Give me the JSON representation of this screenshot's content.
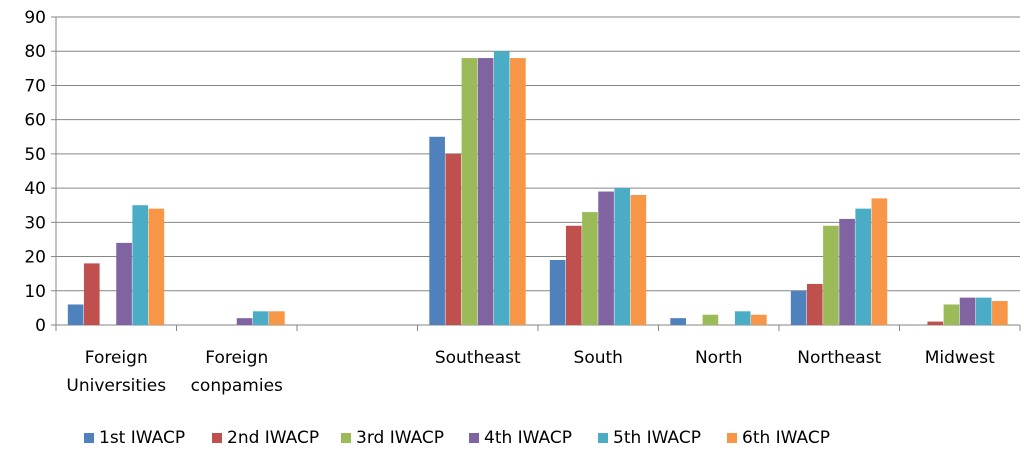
{
  "chart_data": {
    "type": "bar",
    "categories": [
      [
        "Foreign",
        "Universities"
      ],
      [
        "Foreign",
        "conpamies"
      ],
      [
        ""
      ],
      [
        "Southeast"
      ],
      [
        "South"
      ],
      [
        "North"
      ],
      [
        "Northeast"
      ],
      [
        "Midwest"
      ]
    ],
    "series": [
      {
        "name": "1st IWACP",
        "color": "#4f81bd",
        "values": [
          6,
          0,
          0,
          55,
          19,
          2,
          10,
          0
        ]
      },
      {
        "name": "2nd IWACP",
        "color": "#c0504d",
        "values": [
          18,
          0,
          0,
          50,
          29,
          0,
          12,
          1
        ]
      },
      {
        "name": "3rd IWACP",
        "color": "#9bbb59",
        "values": [
          0,
          0,
          0,
          78,
          33,
          3,
          29,
          6
        ]
      },
      {
        "name": "4th IWACP",
        "color": "#8064a2",
        "values": [
          24,
          2,
          0,
          78,
          39,
          0,
          31,
          8
        ]
      },
      {
        "name": "5th IWACP",
        "color": "#4bacc6",
        "values": [
          35,
          4,
          0,
          80,
          40,
          4,
          34,
          8
        ]
      },
      {
        "name": "6th IWACP",
        "color": "#f79646",
        "values": [
          34,
          4,
          0,
          78,
          38,
          3,
          37,
          7
        ]
      }
    ],
    "yticks": [
      0,
      10,
      20,
      30,
      40,
      50,
      60,
      70,
      80,
      90
    ],
    "ylim": [
      0,
      90
    ],
    "grid": true,
    "legend_position": "bottom"
  }
}
